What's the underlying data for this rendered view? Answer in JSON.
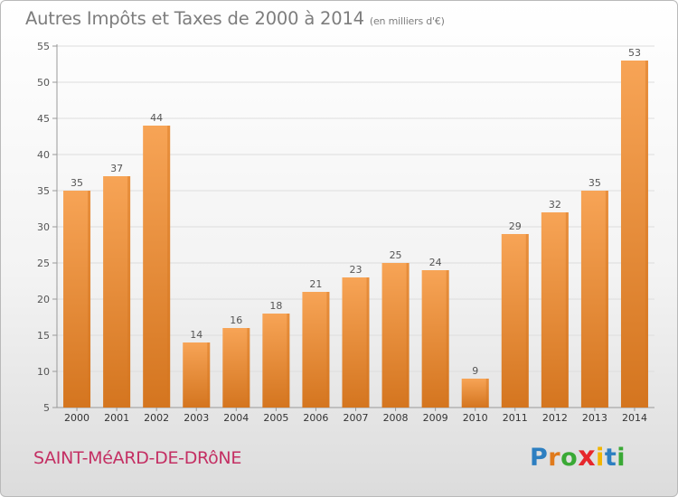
{
  "header": {
    "title": "Autres Impôts et Taxes de 2000 à 2014",
    "subtitle": "(en milliers d'€)"
  },
  "footer": {
    "commune": "SAINT-MéARD-DE-DRôNE",
    "logo": {
      "letters": [
        "P",
        "r",
        "o",
        "x",
        "i",
        "t",
        "i"
      ],
      "colors": [
        "#2d7fc1",
        "#e07a1c",
        "#3aa935",
        "#e6272c",
        "#f2b500",
        "#2d7fc1",
        "#3aa935"
      ]
    }
  },
  "colors": {
    "bar_light": "#f7a456",
    "bar_dark": "#d4751f",
    "axis": "#999999",
    "grid": "#dddddd",
    "text": "#555555"
  },
  "chart_data": {
    "type": "bar",
    "title": "Autres Impôts et Taxes de 2000 à 2014",
    "subtitle": "(en milliers d'€)",
    "categories": [
      "2000",
      "2001",
      "2002",
      "2003",
      "2004",
      "2005",
      "2006",
      "2007",
      "2008",
      "2009",
      "2010",
      "2011",
      "2012",
      "2013",
      "2014"
    ],
    "values": [
      35,
      37,
      44,
      14,
      16,
      18,
      21,
      23,
      25,
      24,
      9,
      29,
      32,
      35,
      53
    ],
    "ylim": [
      5,
      55
    ],
    "yticks": [
      5,
      10,
      15,
      20,
      25,
      30,
      35,
      40,
      45,
      50,
      55
    ],
    "grid": true,
    "data_labels": true
  }
}
